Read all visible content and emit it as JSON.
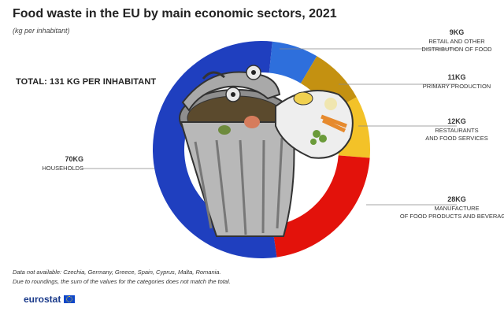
{
  "header": {
    "title": "Food waste in the EU by main economic sectors, 2021",
    "subtitle": "(kg per inhabitant)",
    "total": "TOTAL: 131 KG PER INHABITANT"
  },
  "notes": [
    "Data not available:  Czechia, Germany, Greece, Spain, Cyprus, Malta, Romania.",
    "Due to roundings, the sum of the values for the categories does not match the total."
  ],
  "brand": {
    "name": "eurostat"
  },
  "chart_data": {
    "type": "pie",
    "title": "Food waste in the EU by main economic sectors, 2021",
    "subtitle": "(kg per inhabitant)",
    "unit": "KG",
    "total": 131,
    "categories": [
      "RETAIL AND OTHER DISTRIBUTION OF FOOD",
      "PRIMARY PRODUCTION",
      "RESTAURANTS AND FOOD SERVICES",
      "MANUFACTURE OF FOOD PRODUCTS AND BEVERAGES",
      "HOUSEHOLDS"
    ],
    "values": [
      9,
      11,
      12,
      28,
      70
    ],
    "value_labels": [
      "9KG",
      "11KG",
      "12KG",
      "28KG",
      "70KG"
    ],
    "label_lines": [
      [
        "RETAIL AND OTHER",
        "DISTRIBUTION OF FOOD"
      ],
      [
        "PRIMARY PRODUCTION"
      ],
      [
        "RESTAURANTS",
        "AND FOOD SERVICES"
      ],
      [
        "MANUFACTURE",
        "OF FOOD PRODUCTS AND BEVERAGES"
      ],
      [
        "HOUSEHOLDS"
      ]
    ],
    "colors": [
      "#2e6fdc",
      "#c49111",
      "#f3c228",
      "#e3120b",
      "#1f3fbf"
    ],
    "donut": true,
    "legend": "direct labels"
  }
}
